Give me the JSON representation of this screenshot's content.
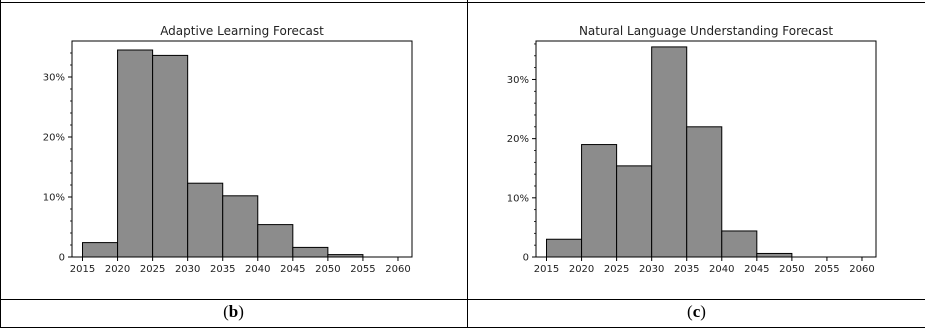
{
  "panels": [
    {
      "label_open": "(",
      "label": "b",
      "label_close": ")"
    },
    {
      "label_open": "(",
      "label": "c",
      "label_close": ")"
    }
  ],
  "chart_data": [
    {
      "type": "bar",
      "title": "Adaptive Learning Forecast",
      "xlabel": "",
      "ylabel": "",
      "x_ticks": [
        "2015",
        "2020",
        "2025",
        "2030",
        "2035",
        "2040",
        "2045",
        "2050",
        "2055",
        "2060"
      ],
      "y_ticks": [
        "0",
        "10%",
        "20%",
        "30%"
      ],
      "xlim": [
        2013.5,
        2062
      ],
      "ylim": [
        0,
        36
      ],
      "bins": [
        {
          "start": 2015,
          "end": 2020,
          "value": 2.4
        },
        {
          "start": 2020,
          "end": 2025,
          "value": 34.5
        },
        {
          "start": 2025,
          "end": 2030,
          "value": 33.6
        },
        {
          "start": 2030,
          "end": 2035,
          "value": 12.3
        },
        {
          "start": 2035,
          "end": 2040,
          "value": 10.2
        },
        {
          "start": 2040,
          "end": 2045,
          "value": 5.4
        },
        {
          "start": 2045,
          "end": 2050,
          "value": 1.6
        },
        {
          "start": 2050,
          "end": 2055,
          "value": 0.4
        }
      ],
      "bar_color": "#8c8c8c",
      "grid": false
    },
    {
      "type": "bar",
      "title": "Natural Language Understanding Forecast",
      "xlabel": "",
      "ylabel": "",
      "x_ticks": [
        "2015",
        "2020",
        "2025",
        "2030",
        "2035",
        "2040",
        "2045",
        "2050",
        "2055",
        "2060"
      ],
      "y_ticks": [
        "0",
        "10%",
        "20%",
        "30%"
      ],
      "xlim": [
        2013.5,
        2062
      ],
      "ylim": [
        0,
        36.5
      ],
      "bins": [
        {
          "start": 2015,
          "end": 2020,
          "value": 3.0
        },
        {
          "start": 2020,
          "end": 2025,
          "value": 19.0
        },
        {
          "start": 2025,
          "end": 2030,
          "value": 15.4
        },
        {
          "start": 2030,
          "end": 2035,
          "value": 35.5
        },
        {
          "start": 2035,
          "end": 2040,
          "value": 22.0
        },
        {
          "start": 2040,
          "end": 2045,
          "value": 4.4
        },
        {
          "start": 2045,
          "end": 2050,
          "value": 0.6
        }
      ],
      "bar_color": "#8c8c8c",
      "grid": false
    }
  ]
}
